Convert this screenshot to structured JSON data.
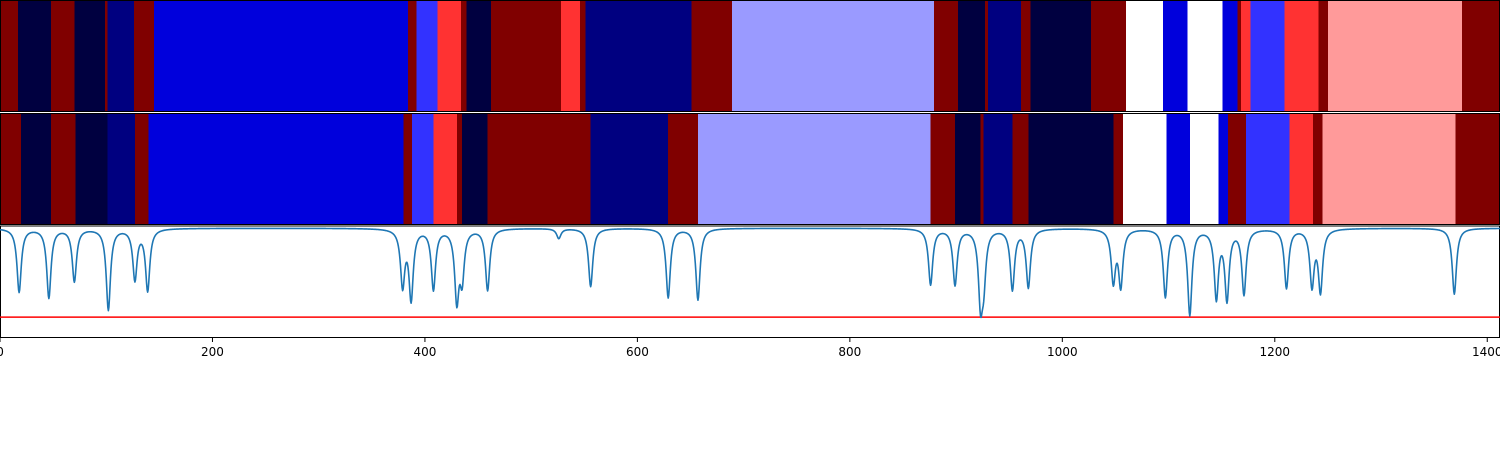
{
  "chart_data": [
    {
      "type": "heatmap",
      "title": "",
      "bands_colors": "dark red (#800000), navy (#000040 / #000080), blue (#0000DC), light blue (#3232FF), light lavender (#9A9AFF), bright red (#FF3232), pink (#FF9A9A), white",
      "segments": [
        {
          "start": 0,
          "end": 17,
          "color": "#800000"
        },
        {
          "start": 17,
          "end": 48,
          "color": "#000040"
        },
        {
          "start": 48,
          "end": 70,
          "color": "#800000"
        },
        {
          "start": 70,
          "end": 99,
          "color": "#000040"
        },
        {
          "start": 99,
          "end": 101,
          "color": "#800000"
        },
        {
          "start": 101,
          "end": 126,
          "color": "#000080"
        },
        {
          "start": 126,
          "end": 145,
          "color": "#800000"
        },
        {
          "start": 145,
          "end": 384,
          "color": "#0000DC"
        },
        {
          "start": 384,
          "end": 392,
          "color": "#800000"
        },
        {
          "start": 392,
          "end": 412,
          "color": "#3232FF"
        },
        {
          "start": 412,
          "end": 434,
          "color": "#FF3232"
        },
        {
          "start": 434,
          "end": 439,
          "color": "#800000"
        },
        {
          "start": 439,
          "end": 462,
          "color": "#000040"
        },
        {
          "start": 462,
          "end": 528,
          "color": "#800000"
        },
        {
          "start": 528,
          "end": 546,
          "color": "#FF3232"
        },
        {
          "start": 546,
          "end": 551,
          "color": "#800000"
        },
        {
          "start": 551,
          "end": 651,
          "color": "#000080"
        },
        {
          "start": 651,
          "end": 689,
          "color": "#800000"
        },
        {
          "start": 689,
          "end": 879,
          "color": "#9A9AFF"
        },
        {
          "start": 879,
          "end": 902,
          "color": "#800000"
        },
        {
          "start": 902,
          "end": 927,
          "color": "#000040"
        },
        {
          "start": 927,
          "end": 930,
          "color": "#800000"
        },
        {
          "start": 930,
          "end": 961,
          "color": "#000080"
        },
        {
          "start": 961,
          "end": 970,
          "color": "#800000"
        },
        {
          "start": 970,
          "end": 1027,
          "color": "#000040"
        },
        {
          "start": 1027,
          "end": 1060,
          "color": "#800000"
        },
        {
          "start": 1060,
          "end": 1095,
          "color": "#FFFFFF"
        },
        {
          "start": 1095,
          "end": 1118,
          "color": "#0000DC"
        },
        {
          "start": 1118,
          "end": 1151,
          "color": "#FFFFFF"
        },
        {
          "start": 1151,
          "end": 1165,
          "color": "#0000DC"
        },
        {
          "start": 1165,
          "end": 1168,
          "color": "#800000"
        },
        {
          "start": 1168,
          "end": 1177,
          "color": "#FF3232"
        },
        {
          "start": 1177,
          "end": 1209,
          "color": "#3232FF"
        },
        {
          "start": 1209,
          "end": 1241,
          "color": "#FF3232"
        },
        {
          "start": 1241,
          "end": 1250,
          "color": "#800000"
        },
        {
          "start": 1250,
          "end": 1376,
          "color": "#FF9A9A"
        },
        {
          "start": 1376,
          "end": 1412,
          "color": "#800000"
        }
      ]
    },
    {
      "type": "heatmap",
      "title": "",
      "segments": [
        {
          "start": 0,
          "end": 20,
          "color": "#800000"
        },
        {
          "start": 20,
          "end": 48,
          "color": "#000040"
        },
        {
          "start": 48,
          "end": 71,
          "color": "#800000"
        },
        {
          "start": 71,
          "end": 101,
          "color": "#000040"
        },
        {
          "start": 101,
          "end": 127,
          "color": "#000080"
        },
        {
          "start": 127,
          "end": 140,
          "color": "#800000"
        },
        {
          "start": 140,
          "end": 380,
          "color": "#0000DC"
        },
        {
          "start": 380,
          "end": 388,
          "color": "#800000"
        },
        {
          "start": 388,
          "end": 408,
          "color": "#3232FF"
        },
        {
          "start": 408,
          "end": 430,
          "color": "#FF3232"
        },
        {
          "start": 430,
          "end": 435,
          "color": "#800000"
        },
        {
          "start": 435,
          "end": 459,
          "color": "#000040"
        },
        {
          "start": 459,
          "end": 556,
          "color": "#800000"
        },
        {
          "start": 556,
          "end": 629,
          "color": "#000080"
        },
        {
          "start": 629,
          "end": 657,
          "color": "#800000"
        },
        {
          "start": 657,
          "end": 876,
          "color": "#9A9AFF"
        },
        {
          "start": 876,
          "end": 899,
          "color": "#800000"
        },
        {
          "start": 899,
          "end": 923,
          "color": "#000040"
        },
        {
          "start": 923,
          "end": 926,
          "color": "#800000"
        },
        {
          "start": 926,
          "end": 953,
          "color": "#000080"
        },
        {
          "start": 953,
          "end": 968,
          "color": "#800000"
        },
        {
          "start": 968,
          "end": 1048,
          "color": "#000040"
        },
        {
          "start": 1048,
          "end": 1057,
          "color": "#800000"
        },
        {
          "start": 1057,
          "end": 1098,
          "color": "#FFFFFF"
        },
        {
          "start": 1098,
          "end": 1120,
          "color": "#0000DC"
        },
        {
          "start": 1120,
          "end": 1147,
          "color": "#FFFFFF"
        },
        {
          "start": 1147,
          "end": 1156,
          "color": "#0000DC"
        },
        {
          "start": 1156,
          "end": 1173,
          "color": "#800000"
        },
        {
          "start": 1173,
          "end": 1214,
          "color": "#3232FF"
        },
        {
          "start": 1214,
          "end": 1236,
          "color": "#FF3232"
        },
        {
          "start": 1236,
          "end": 1245,
          "color": "#800000"
        },
        {
          "start": 1245,
          "end": 1370,
          "color": "#FF9A9A"
        },
        {
          "start": 1370,
          "end": 1412,
          "color": "#800000"
        }
      ]
    },
    {
      "type": "line",
      "title": "",
      "xlabel": "",
      "ylabel": "",
      "xlim": [
        0,
        1412
      ],
      "ylim": [
        -1.0,
        0.02
      ],
      "grid": false,
      "x_ticks": [
        0,
        200,
        400,
        600,
        800,
        1000,
        1200,
        1400
      ],
      "x_tick_labels": [
        "0",
        "200",
        "400",
        "600",
        "800",
        "1000",
        "1200",
        "1400"
      ],
      "baseline": 0,
      "series": [
        {
          "color": "#1f77b4",
          "dips": [
            {
              "x": 18,
              "depth": 0.58
            },
            {
              "x": 46,
              "depth": 0.63
            },
            {
              "x": 70,
              "depth": 0.48
            },
            {
              "x": 102,
              "depth": 0.74
            },
            {
              "x": 127,
              "depth": 0.46
            },
            {
              "x": 139,
              "depth": 0.56
            },
            {
              "x": 379,
              "depth": 0.51
            },
            {
              "x": 387,
              "depth": 0.63
            },
            {
              "x": 408,
              "depth": 0.55
            },
            {
              "x": 430,
              "depth": 0.63
            },
            {
              "x": 435,
              "depth": 0.43
            },
            {
              "x": 459,
              "depth": 0.56
            },
            {
              "x": 526,
              "depth": 0.09
            },
            {
              "x": 556,
              "depth": 0.53
            },
            {
              "x": 629,
              "depth": 0.63
            },
            {
              "x": 657,
              "depth": 0.65
            },
            {
              "x": 876,
              "depth": 0.51
            },
            {
              "x": 899,
              "depth": 0.51
            },
            {
              "x": 923,
              "depth": 0.63
            },
            {
              "x": 926,
              "depth": 0.41
            },
            {
              "x": 953,
              "depth": 0.55
            },
            {
              "x": 968,
              "depth": 0.53
            },
            {
              "x": 1048,
              "depth": 0.47
            },
            {
              "x": 1055,
              "depth": 0.51
            },
            {
              "x": 1097,
              "depth": 0.62
            },
            {
              "x": 1120,
              "depth": 0.78
            },
            {
              "x": 1145,
              "depth": 0.62
            },
            {
              "x": 1155,
              "depth": 0.63
            },
            {
              "x": 1171,
              "depth": 0.59
            },
            {
              "x": 1211,
              "depth": 0.54
            },
            {
              "x": 1235,
              "depth": 0.51
            },
            {
              "x": 1243,
              "depth": 0.56
            },
            {
              "x": 1369,
              "depth": 0.6
            }
          ]
        },
        {
          "color": "#FF0000",
          "constant": -0.81
        }
      ]
    }
  ]
}
